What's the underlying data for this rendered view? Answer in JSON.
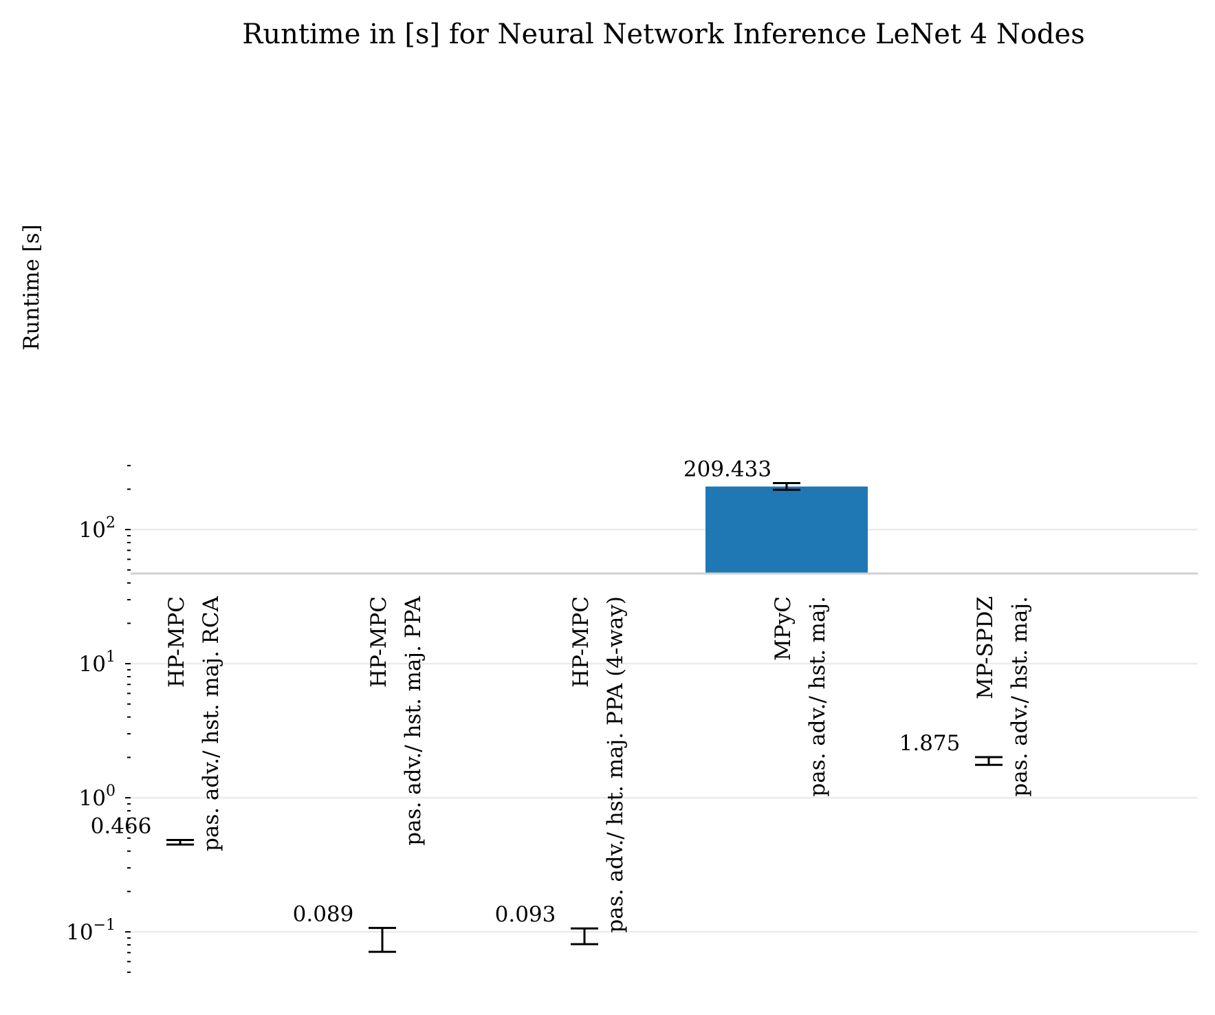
{
  "chart_data": {
    "type": "bar",
    "title": "Runtime in [s] for Neural Network Inference LeNet 4 Nodes",
    "xlabel": "",
    "ylabel": "Runtime [s]",
    "yscale": "log",
    "ylim": [
      0.05,
      320
    ],
    "grid": true,
    "legend": "none",
    "yticks": [
      {
        "value": 0.1,
        "base": "10",
        "exp": "−1"
      },
      {
        "value": 1,
        "base": "10",
        "exp": "0"
      },
      {
        "value": 10,
        "base": "10",
        "exp": "1"
      },
      {
        "value": 100,
        "base": "10",
        "exp": "2"
      }
    ],
    "categories": [
      {
        "lines": [
          "HP-MPC",
          "pas. adv./ hst. maj. RCA"
        ]
      },
      {
        "lines": [
          "HP-MPC",
          "pas. adv./ hst. maj. PPA"
        ]
      },
      {
        "lines": [
          "HP-MPC",
          "pas. adv./ hst. maj. PPA (4-way)"
        ]
      },
      {
        "lines": [
          "MPyC",
          "pas. adv./ hst. maj."
        ]
      },
      {
        "lines": [
          "MP-SPDZ",
          "pas. adv./ hst. maj."
        ]
      }
    ],
    "values": [
      0.466,
      0.089,
      0.093,
      209.433,
      1.875
    ],
    "value_labels": [
      "0.466",
      "0.089",
      "0.093",
      "209.433",
      "1.875"
    ],
    "errors": [
      {
        "low": 0.448,
        "high": 0.484
      },
      {
        "low": 0.071,
        "high": 0.107
      },
      {
        "low": 0.081,
        "high": 0.106
      },
      {
        "low": 198,
        "high": 222
      },
      {
        "low": 1.76,
        "high": 2.01
      }
    ],
    "colors": {
      "bar": "#1f77b4",
      "grid": "#ebebeb",
      "axis": "#d0d0d0",
      "error": "#000000"
    }
  }
}
